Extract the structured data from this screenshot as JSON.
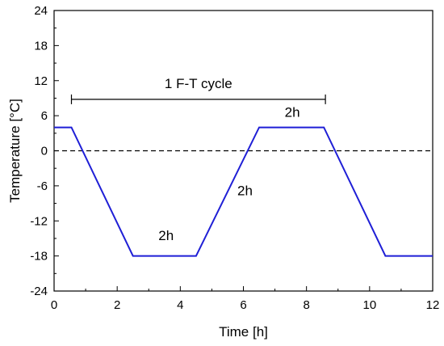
{
  "chart_data": {
    "type": "line",
    "xlabel": "Time [h]",
    "ylabel": "Temperature [°C]",
    "xlim": [
      0,
      12
    ],
    "ylim": [
      -24,
      24
    ],
    "xticks": [
      0,
      2,
      4,
      6,
      8,
      10,
      12
    ],
    "yticks": [
      -24,
      -18,
      -12,
      -6,
      0,
      6,
      12,
      18,
      24
    ],
    "grid": false,
    "series": [
      {
        "color": "#1f1fd6",
        "x": [
          0,
          0.55,
          2.5,
          4.5,
          6.5,
          8.55,
          10.5,
          12
        ],
        "y": [
          4,
          4,
          -18,
          -18,
          4,
          4,
          -18,
          -18
        ]
      }
    ],
    "reference_line": {
      "y": 0,
      "style": "dashed",
      "color": "#000000"
    },
    "cycle_bracket": {
      "x_start": 0.55,
      "x_end": 8.6,
      "y": 8.8,
      "label": "1 F-T cycle"
    },
    "annotations": [
      {
        "text": "2h",
        "x": 3.55,
        "y": -15.3
      },
      {
        "text": "2h",
        "x": 6.05,
        "y": -7.6
      },
      {
        "text": "2h",
        "x": 7.55,
        "y": 5.8
      }
    ]
  }
}
